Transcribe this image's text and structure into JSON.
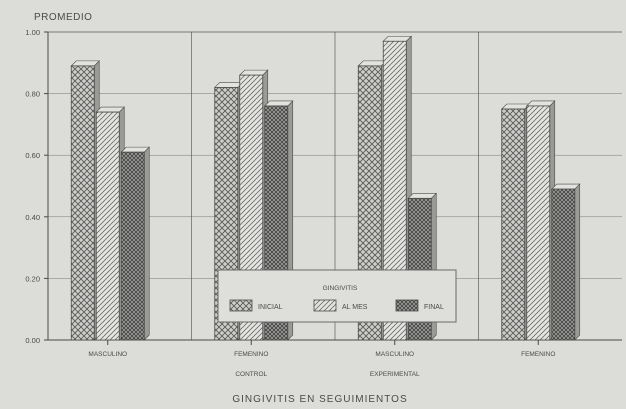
{
  "chart_data": {
    "type": "bar",
    "title": "GINGIVITIS EN SEGUIMIENTOS",
    "ylabel": "PROMEDIO",
    "xlabel": "",
    "ylim": [
      0,
      1.0
    ],
    "yticks": [
      "0.00",
      "0.20",
      "0.40",
      "0.60",
      "0.80",
      "1.00"
    ],
    "ytick_values": [
      0,
      0.2,
      0.4,
      0.6,
      0.8,
      1.0
    ],
    "grid": true,
    "legend_title": "GINGIVITIS",
    "legend_position": "bottom-center",
    "categories": [
      {
        "line1": "MASCULINO",
        "line2": ""
      },
      {
        "line1": "FEMENINO",
        "line2": "CONTROL"
      },
      {
        "line1": "MASCULINO",
        "line2": "EXPERIMENTAL"
      },
      {
        "line1": "FEMENINO",
        "line2": ""
      }
    ],
    "series": [
      {
        "name": "INICIAL",
        "values": [
          0.89,
          0.82,
          0.89,
          0.75
        ],
        "pattern": "crosshatch"
      },
      {
        "name": "AL MES",
        "values": [
          0.74,
          0.86,
          0.97,
          0.76
        ],
        "pattern": "diagonal"
      },
      {
        "name": "FINAL",
        "values": [
          0.61,
          0.76,
          0.46,
          0.49
        ],
        "pattern": "dense"
      }
    ],
    "colors": {
      "background": "#dcdcd8",
      "ink": "#4a4a4a",
      "bar_fill": "#c9c9c5",
      "bar_top": "#e2e2de",
      "bar_side": "#9a9a96"
    }
  }
}
